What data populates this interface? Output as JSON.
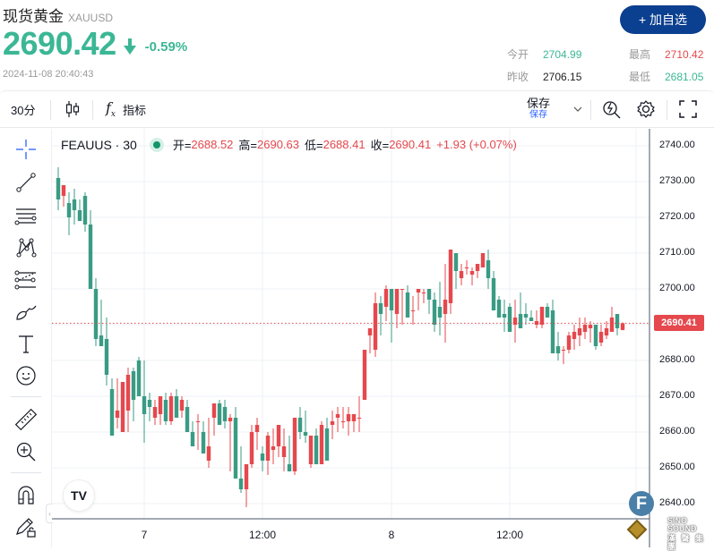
{
  "header": {
    "title_cn": "现货黄金",
    "symbol_code": "XAUUSD",
    "price": "2690.42",
    "direction": "down",
    "change_pct": "-0.59%",
    "timestamp": "2024-11-08 20:40:43",
    "add_watchlist_label": "+ 加自选",
    "stats": {
      "open_label": "今开",
      "open": "2704.99",
      "prev_close_label": "昨收",
      "prev_close": "2706.15",
      "high_label": "最高",
      "high": "2710.42",
      "low_label": "最低",
      "low": "2681.05"
    }
  },
  "toolbar": {
    "interval": "30分",
    "chart_type_icon": "candlestick-icon",
    "indicators_label": "指标",
    "save_label": "保存",
    "save_sub_label": "保存",
    "icons": [
      "fx-icon",
      "chevron-down-icon",
      "quick-search-icon",
      "gear-icon",
      "fullscreen-icon"
    ]
  },
  "sidebar": {
    "tools": [
      {
        "name": "crosshair-icon"
      },
      {
        "name": "trend-line-icon"
      },
      {
        "name": "horizontal-lines-icon"
      },
      {
        "name": "pattern-icon"
      },
      {
        "name": "fib-retracement-icon"
      },
      {
        "name": "brush-icon"
      },
      {
        "name": "text-icon"
      },
      {
        "name": "emoji-icon"
      },
      {
        "name": "ruler-icon"
      },
      {
        "name": "zoom-in-icon"
      },
      {
        "name": "magnet-icon"
      },
      {
        "name": "lock-drawings-icon"
      }
    ]
  },
  "legend": {
    "symbol": "FEAUUS · 30",
    "open_label": "开=",
    "open": "2688.52",
    "high_label": "高=",
    "high": "2690.63",
    "low_label": "低=",
    "low": "2688.41",
    "close_label": "收=",
    "close": "2690.41",
    "change": "+1.93 (+0.07%)"
  },
  "last_price_tag": "2690.41",
  "watermark": {
    "badge": "F",
    "brand": "SINO SOUND",
    "brand_cn": "漢 聲 集 團",
    "tv_logo": "TV"
  },
  "colors": {
    "up": "#e5484d",
    "down": "#3a9b84",
    "accent": "#0b3f8f",
    "price_green": "#3bb795"
  },
  "chart_data": {
    "type": "candlestick",
    "title": "FEAUUS · 30",
    "xlabel": "",
    "ylabel": "",
    "ylim": [
      2636,
      2744
    ],
    "y_ticks": [
      "2740.00",
      "2730.00",
      "2720.00",
      "2710.00",
      "2700.00",
      "2690.00",
      "2680.00",
      "2670.00",
      "2660.00",
      "2650.00",
      "2640.00"
    ],
    "x_ticks": [
      {
        "label": "7",
        "candle": 16
      },
      {
        "label": "12:00",
        "candle": 38
      },
      {
        "label": "8",
        "candle": 62
      },
      {
        "label": "12:00",
        "candle": 84
      }
    ],
    "last_price": 2690.41,
    "grid": true,
    "candles": [
      [
        2731,
        2734,
        2722,
        2725
      ],
      [
        2726,
        2729,
        2723,
        2729
      ],
      [
        2724,
        2727,
        2715,
        2720
      ],
      [
        2725,
        2728,
        2718,
        2722
      ],
      [
        2722,
        2725,
        2720,
        2719
      ],
      [
        2726,
        2727,
        2716,
        2718
      ],
      [
        2718,
        2722,
        2700,
        2700
      ],
      [
        2700,
        2703,
        2684,
        2686
      ],
      [
        2687,
        2697,
        2685,
        2684
      ],
      [
        2686,
        2692,
        2673,
        2676
      ],
      [
        2672,
        2675,
        2659,
        2659
      ],
      [
        2664,
        2675,
        2661,
        2666
      ],
      [
        2660,
        2674,
        2669,
        2674
      ],
      [
        2666,
        2678,
        2660,
        2676
      ],
      [
        2677,
        2678,
        2663,
        2669
      ],
      [
        2680,
        2681,
        2673,
        2670
      ],
      [
        2670,
        2680,
        2657,
        2665
      ],
      [
        2669,
        2671,
        2663,
        2667
      ],
      [
        2664,
        2669,
        2662,
        2667
      ],
      [
        2665,
        2669,
        2662,
        2670
      ],
      [
        2669,
        2671,
        2662,
        2663
      ],
      [
        2663,
        2671,
        2662,
        2670
      ],
      [
        2670,
        2672,
        2664,
        2664
      ],
      [
        2666,
        2670,
        2664,
        2669
      ],
      [
        2667,
        2669,
        2663,
        2660
      ],
      [
        2660,
        2663,
        2657,
        2656
      ],
      [
        2663,
        2665,
        2655,
        2663
      ],
      [
        2660,
        2663,
        2657,
        2654
      ],
      [
        2652,
        2664,
        2650,
        2656
      ],
      [
        2664,
        2668,
        2659,
        2668
      ],
      [
        2668,
        2669,
        2662,
        2662
      ],
      [
        2667,
        2669,
        2661,
        2663
      ],
      [
        2663,
        2665,
        2649,
        2664
      ],
      [
        2664,
        2667,
        2656,
        2647
      ],
      [
        2647,
        2656,
        2643,
        2644
      ],
      [
        2644,
        2649,
        2639,
        2651
      ],
      [
        2651,
        2662,
        2650,
        2660
      ],
      [
        2660,
        2664,
        2655,
        2662
      ],
      [
        2654,
        2656,
        2649,
        2652
      ],
      [
        2652,
        2660,
        2648,
        2659
      ],
      [
        2655,
        2661,
        2651,
        2656
      ],
      [
        2656,
        2660,
        2653,
        2662
      ],
      [
        2653,
        2661,
        2649,
        2656
      ],
      [
        2651,
        2659,
        2649,
        2649
      ],
      [
        2649,
        2664,
        2648,
        2664
      ],
      [
        2664,
        2667,
        2658,
        2660
      ],
      [
        2660,
        2666,
        2657,
        2659
      ],
      [
        2651,
        2659,
        2650,
        2659
      ],
      [
        2659,
        2661,
        2654,
        2651
      ],
      [
        2651,
        2663,
        2652,
        2662
      ],
      [
        2661,
        2664,
        2656,
        2652
      ],
      [
        2662,
        2666,
        2658,
        2663
      ],
      [
        2664,
        2667,
        2660,
        2665
      ],
      [
        2663,
        2667,
        2661,
        2663
      ],
      [
        2663,
        2667,
        2659,
        2665
      ],
      [
        2663,
        2664,
        2660,
        2665
      ],
      [
        2664,
        2670,
        2660,
        2664
      ],
      [
        2669,
        2683,
        2669,
        2683
      ],
      [
        2687,
        2688,
        2682,
        2689
      ],
      [
        2683,
        2699,
        2681,
        2696
      ],
      [
        2696,
        2698,
        2687,
        2693
      ],
      [
        2695,
        2701,
        2691,
        2700
      ],
      [
        2700,
        2700,
        2685,
        2694
      ],
      [
        2693,
        2700,
        2689,
        2700
      ],
      [
        2700,
        2700,
        2690,
        2700
      ],
      [
        2699,
        2701,
        2696,
        2692
      ],
      [
        2694,
        2698,
        2690,
        2694
      ],
      [
        2699,
        2700,
        2694,
        2700
      ],
      [
        2699,
        2700,
        2696,
        2699
      ],
      [
        2700,
        2700,
        2693,
        2697
      ],
      [
        2697,
        2699,
        2688,
        2690
      ],
      [
        2695,
        2702,
        2687,
        2692
      ],
      [
        2693,
        2707,
        2685,
        2697
      ],
      [
        2696,
        2710,
        2693,
        2711
      ],
      [
        2710,
        2709,
        2700,
        2705
      ],
      [
        2703,
        2707,
        2701,
        2705
      ],
      [
        2706,
        2708,
        2704,
        2706
      ],
      [
        2704,
        2706,
        2701,
        2705
      ],
      [
        2705,
        2707,
        2703,
        2707
      ],
      [
        2706,
        2710,
        2706,
        2710
      ],
      [
        2708,
        2711,
        2700,
        2703
      ],
      [
        2703,
        2705,
        2694,
        2694
      ],
      [
        2697,
        2698,
        2692,
        2692
      ],
      [
        2693,
        2697,
        2688,
        2692
      ],
      [
        2695,
        2696,
        2690,
        2688
      ],
      [
        2690,
        2697,
        2685,
        2692
      ],
      [
        2693,
        2699,
        2690,
        2689
      ],
      [
        2693,
        2696,
        2690,
        2692
      ],
      [
        2692,
        2694,
        2691,
        2691
      ],
      [
        2690,
        2694,
        2689,
        2691
      ],
      [
        2690,
        2693,
        2689,
        2695
      ],
      [
        2695,
        2696,
        2692,
        2692
      ],
      [
        2694,
        2697,
        2689,
        2682
      ],
      [
        2684,
        2688,
        2680,
        2682
      ],
      [
        2683,
        2684,
        2679,
        2683
      ],
      [
        2683,
        2688,
        2682,
        2687
      ],
      [
        2686,
        2690,
        2683,
        2688
      ],
      [
        2687,
        2692,
        2684,
        2689
      ],
      [
        2688,
        2692,
        2686,
        2690
      ],
      [
        2689,
        2691,
        2685,
        2690
      ],
      [
        2690,
        2690,
        2683,
        2684
      ],
      [
        2685,
        2690,
        2684,
        2688
      ],
      [
        2687,
        2691,
        2686,
        2689
      ],
      [
        2688,
        2695,
        2688,
        2692
      ],
      [
        2693,
        2693,
        2687,
        2689
      ],
      [
        2688.52,
        2690.63,
        2688.41,
        2690.41
      ]
    ]
  }
}
